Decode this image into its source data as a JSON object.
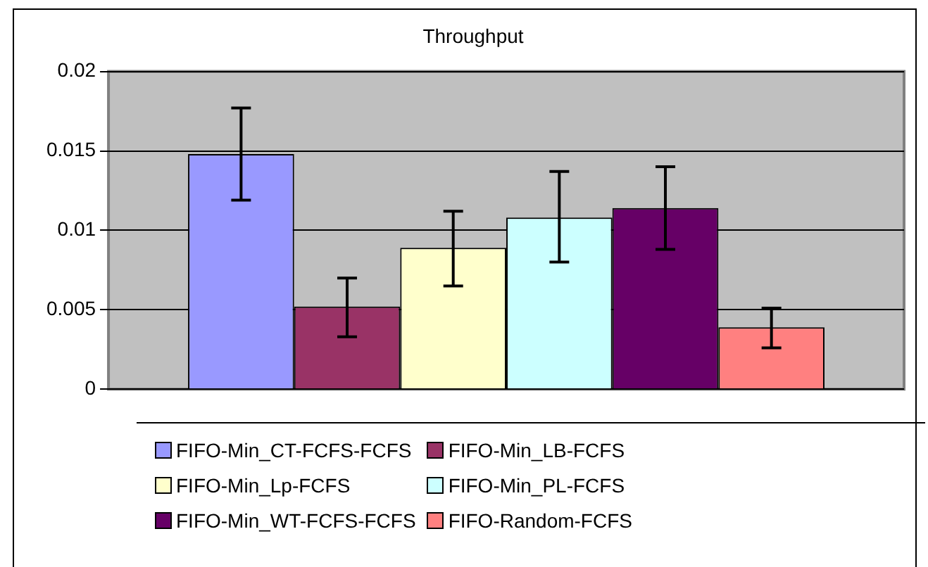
{
  "chart_data": {
    "type": "bar",
    "title": "Throughput",
    "categories": [
      null
    ],
    "series": [
      {
        "name": "FIFO-Min_CT-FCFS-FCFS",
        "color": "#9999ff",
        "values": [
          0.0148
        ],
        "errors": [
          [
            0.0119,
            0.0177
          ]
        ]
      },
      {
        "name": "FIFO-Min_LB-FCFS",
        "color": "#993366",
        "values": [
          0.0052
        ],
        "errors": [
          [
            0.0033,
            0.007
          ]
        ]
      },
      {
        "name": "FIFO-Min_Lp-FCFS",
        "color": "#ffffcc",
        "values": [
          0.0089
        ],
        "errors": [
          [
            0.0065,
            0.0112
          ]
        ]
      },
      {
        "name": "FIFO-Min_PL-FCFS",
        "color": "#ccffff",
        "values": [
          0.0108
        ],
        "errors": [
          [
            0.008,
            0.0137
          ]
        ]
      },
      {
        "name": "FIFO-Min_WT-FCFS-FCFS",
        "color": "#660066",
        "values": [
          0.0114
        ],
        "errors": [
          [
            0.0088,
            0.014
          ]
        ]
      },
      {
        "name": "FIFO-Random-FCFS",
        "color": "#ff8080",
        "values": [
          0.0039
        ],
        "errors": [
          [
            0.0026,
            0.0051
          ]
        ]
      }
    ],
    "ylim": [
      0,
      0.02
    ],
    "yticks": [
      0,
      0.005,
      0.01,
      0.015,
      0.02
    ],
    "grid": "y",
    "legend": "bottom",
    "tick_labels": "y"
  }
}
